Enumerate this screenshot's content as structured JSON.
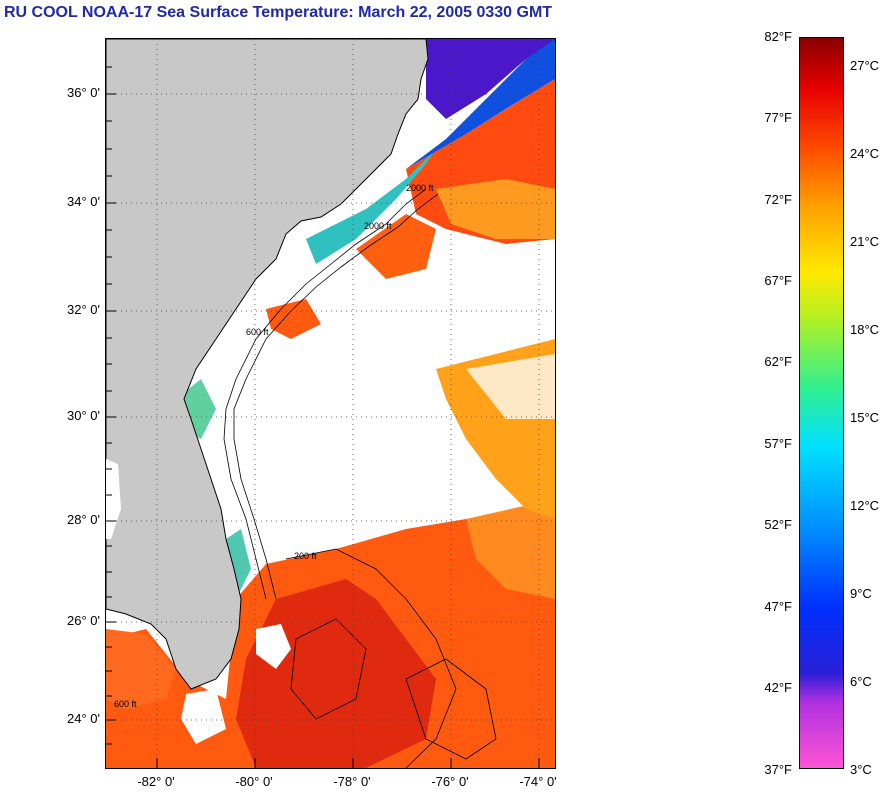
{
  "title": "RU COOL  NOAA-17  Sea Surface Temperature:  March 22, 2005 0330 GMT",
  "map": {
    "lat_labels": [
      "36° 0'",
      "34° 0'",
      "32° 0'",
      "30° 0'",
      "28° 0'",
      "26° 0'",
      "24° 0'"
    ],
    "lon_labels": [
      "-82° 0'",
      "-80° 0'",
      "-78° 0'",
      "-76° 0'",
      "-74° 0'"
    ],
    "lat_range": [
      23.1,
      36.9
    ],
    "lon_range": [
      -83.0,
      -73.9
    ],
    "land_color": "#c8c8c8",
    "cloud_color": "#ffffff",
    "contour_labels": [
      "2000 ft",
      "600 ft",
      "200 ft",
      "600 ft",
      "2000 ft"
    ]
  },
  "colorbar": {
    "fahrenheit": [
      "82°F",
      "77°F",
      "72°F",
      "67°F",
      "62°F",
      "57°F",
      "52°F",
      "47°F",
      "42°F",
      "37°F"
    ],
    "celsius": [
      "27°C",
      "24°C",
      "21°C",
      "18°C",
      "15°C",
      "12°C",
      "9°C",
      "6°C",
      "3°C"
    ]
  }
}
